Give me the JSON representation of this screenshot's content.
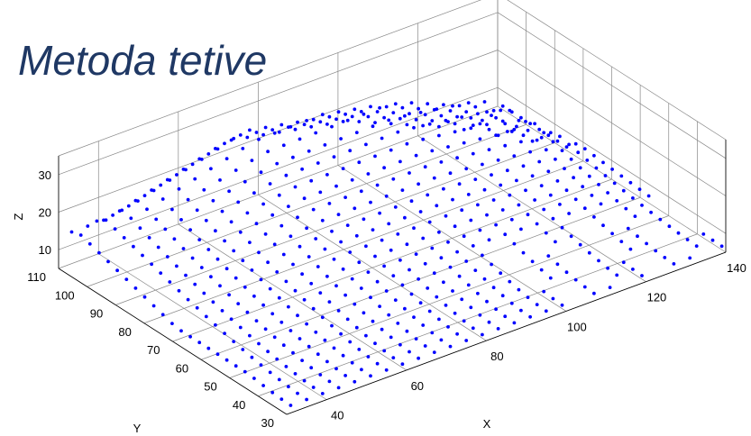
{
  "slide": {
    "title": "Metoda tetive"
  },
  "chart_data": {
    "type": "scatter",
    "title": "Metoda tetive",
    "xlabel": "X",
    "ylabel": "Y",
    "zlabel": "Z",
    "xlim": [
      30,
      140
    ],
    "ylim": [
      30,
      110
    ],
    "zlim": [
      5,
      35
    ],
    "x_ticks": [
      40,
      60,
      80,
      100,
      120,
      140
    ],
    "y_ticks": [
      30,
      40,
      50,
      60,
      70,
      80,
      90,
      100,
      110
    ],
    "z_ticks": [
      10,
      20,
      30
    ],
    "grid": true,
    "marker_color": "#0000ff",
    "grid_color": "#888888",
    "surface": {
      "description": "dense grid of sampled terrain points",
      "x_step": 4,
      "y_step": 3.2,
      "ridge": [
        {
          "x": 40,
          "y": 100,
          "z": 22
        },
        {
          "x": 70,
          "y": 100,
          "z": 31
        },
        {
          "x": 100,
          "y": 95,
          "z": 29
        },
        {
          "x": 125,
          "y": 90,
          "z": 22
        },
        {
          "x": 140,
          "y": 80,
          "z": 9
        }
      ],
      "z_min": 7,
      "z_max": 31
    }
  }
}
